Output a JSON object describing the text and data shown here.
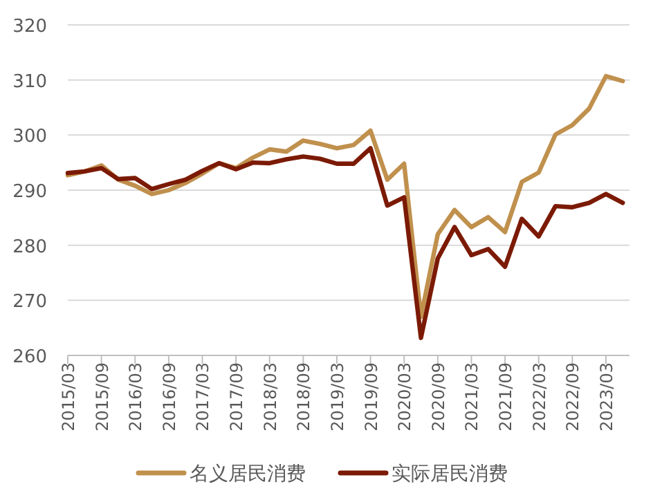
{
  "chart_data": {
    "type": "line",
    "categories": [
      "2015/03",
      null,
      "2015/09",
      null,
      "2016/03",
      null,
      "2016/09",
      null,
      "2017/03",
      null,
      "2017/09",
      null,
      "2018/03",
      null,
      "2018/09",
      null,
      "2019/03",
      null,
      "2019/09",
      null,
      "2020/03",
      null,
      "2020/09",
      null,
      "2021/03",
      null,
      "2021/09",
      null,
      "2022/03",
      null,
      "2022/09",
      null,
      "2023/03",
      null
    ],
    "series": [
      {
        "name": "名义居民消费",
        "color": "#c0904d",
        "values": [
          292.7,
          293.4,
          294.5,
          291.9,
          290.8,
          289.3,
          290.0,
          291.3,
          293.0,
          294.9,
          294.0,
          295.9,
          297.4,
          297.0,
          299.0,
          298.4,
          297.6,
          298.2,
          300.8,
          291.9,
          294.8,
          267.0,
          282.0,
          286.4,
          283.3,
          285.1,
          282.4,
          291.5,
          293.2,
          300.1,
          301.8,
          304.8,
          310.7,
          309.8
        ]
      },
      {
        "name": "实际居民消费",
        "color": "#7b1a05",
        "values": [
          293.1,
          293.4,
          294.0,
          292.0,
          292.2,
          290.2,
          291.1,
          291.9,
          293.5,
          294.9,
          293.8,
          295.0,
          294.9,
          295.6,
          296.1,
          295.7,
          294.8,
          294.8,
          297.6,
          287.2,
          288.7,
          263.2,
          277.6,
          283.3,
          278.2,
          279.3,
          276.1,
          284.8,
          281.6,
          287.1,
          286.9,
          287.7,
          289.3,
          287.7
        ]
      }
    ],
    "ylim": [
      260,
      320
    ],
    "yticks": [
      260,
      270,
      280,
      290,
      300,
      310,
      320
    ],
    "grid": "y",
    "legend": "bottom",
    "marker": "none",
    "line_style": "solid"
  }
}
